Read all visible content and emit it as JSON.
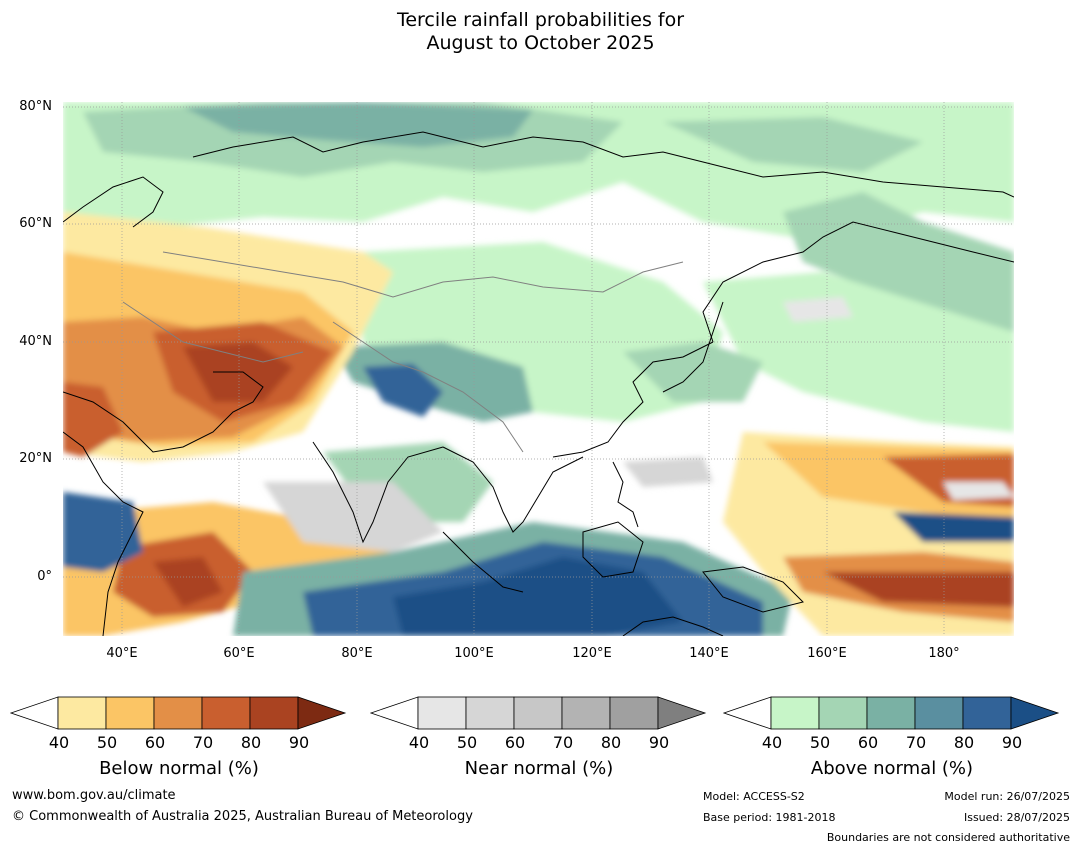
{
  "title": {
    "line1": "Tercile rainfall probabilities for",
    "line2": "August to October 2025"
  },
  "map": {
    "lat_labels": [
      "80°N",
      "60°N",
      "40°N",
      "20°N",
      "0°"
    ],
    "lon_labels": [
      "40°E",
      "60°E",
      "80°E",
      "100°E",
      "120°E",
      "140°E",
      "160°E",
      "180°"
    ],
    "lat_range": [
      -10,
      80
    ],
    "lon_range": [
      30,
      192
    ],
    "grid": true
  },
  "legends": [
    {
      "name": "Below normal (%)",
      "ticks": [
        "40",
        "50",
        "60",
        "70",
        "80",
        "90"
      ],
      "colors": [
        "#ffffff",
        "#fde9a1",
        "#fbc565",
        "#e38f47",
        "#c95f2f",
        "#aa4321",
        "#7d2a12"
      ]
    },
    {
      "name": "Near normal (%)",
      "ticks": [
        "40",
        "50",
        "60",
        "70",
        "80",
        "90"
      ],
      "colors": [
        "#ffffff",
        "#e6e6e6",
        "#d6d6d6",
        "#c7c7c7",
        "#b3b3b3",
        "#a0a0a0",
        "#7f7f7f"
      ]
    },
    {
      "name": "Above normal (%)",
      "ticks": [
        "40",
        "50",
        "60",
        "70",
        "80",
        "90"
      ],
      "colors": [
        "#ffffff",
        "#c7f5c8",
        "#a4d5b4",
        "#7ab1a4",
        "#5a8fa0",
        "#326398",
        "#1b4f86"
      ]
    }
  ],
  "footer": {
    "website": "www.bom.gov.au/climate",
    "copyright": "© Commonwealth of Australia 2025, Australian Bureau of Meteorology",
    "model": "Model: ACCESS-S2",
    "base_period": "Base period: 1981-2018",
    "model_run": "Model run: 26/07/2025",
    "issued": "Issued: 28/07/2025",
    "boundaries_note": "Boundaries are not considered authoritative"
  }
}
